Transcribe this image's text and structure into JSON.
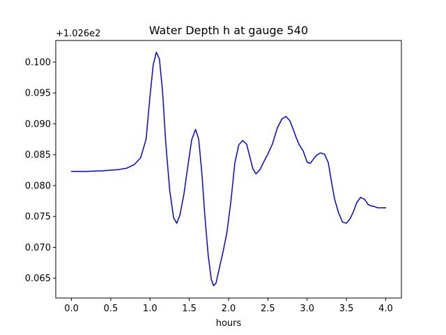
{
  "chart_data": {
    "type": "line",
    "title": "Water Depth h at gauge 540",
    "xlabel": "hours",
    "ylabel": "",
    "y_offset_label": "+1.026e2",
    "xlim": [
      -0.2,
      4.2
    ],
    "ylim": [
      0.0618,
      0.1035
    ],
    "grid": false,
    "x_ticks": [
      {
        "value": 0.0,
        "label": "0.0"
      },
      {
        "value": 0.5,
        "label": "0.5"
      },
      {
        "value": 1.0,
        "label": "1.0"
      },
      {
        "value": 1.5,
        "label": "1.5"
      },
      {
        "value": 2.0,
        "label": "2.0"
      },
      {
        "value": 2.5,
        "label": "2.5"
      },
      {
        "value": 3.0,
        "label": "3.0"
      },
      {
        "value": 3.5,
        "label": "3.5"
      },
      {
        "value": 4.0,
        "label": "4.0"
      }
    ],
    "y_ticks": [
      {
        "value": 0.065,
        "label": "0.065"
      },
      {
        "value": 0.07,
        "label": "0.070"
      },
      {
        "value": 0.075,
        "label": "0.075"
      },
      {
        "value": 0.08,
        "label": "0.080"
      },
      {
        "value": 0.085,
        "label": "0.085"
      },
      {
        "value": 0.09,
        "label": "0.090"
      },
      {
        "value": 0.095,
        "label": "0.095"
      },
      {
        "value": 0.1,
        "label": "0.100"
      }
    ],
    "series": [
      {
        "color": "#0000ff",
        "x": [
          0.0,
          0.2,
          0.4,
          0.6,
          0.7,
          0.8,
          0.88,
          0.95,
          1.0,
          1.04,
          1.08,
          1.12,
          1.16,
          1.2,
          1.25,
          1.3,
          1.34,
          1.38,
          1.43,
          1.48,
          1.53,
          1.58,
          1.62,
          1.66,
          1.7,
          1.74,
          1.78,
          1.81,
          1.84,
          1.88,
          1.93,
          1.98,
          2.03,
          2.08,
          2.13,
          2.18,
          2.23,
          2.27,
          2.31,
          2.35,
          2.4,
          2.45,
          2.5,
          2.56,
          2.62,
          2.68,
          2.73,
          2.78,
          2.82,
          2.86,
          2.9,
          2.95,
          3.0,
          3.04,
          3.08,
          3.12,
          3.17,
          3.22,
          3.27,
          3.31,
          3.35,
          3.4,
          3.45,
          3.5,
          3.55,
          3.59,
          3.63,
          3.68,
          3.73,
          3.78,
          3.82,
          3.86,
          3.9,
          3.95,
          4.0
        ],
        "y": [
          0.0823,
          0.0823,
          0.0824,
          0.0826,
          0.0828,
          0.0834,
          0.0845,
          0.0875,
          0.0945,
          0.0995,
          0.1016,
          0.1005,
          0.0952,
          0.087,
          0.0793,
          0.0748,
          0.0739,
          0.0752,
          0.0785,
          0.083,
          0.0874,
          0.0891,
          0.0875,
          0.082,
          0.0748,
          0.0688,
          0.0648,
          0.0638,
          0.0642,
          0.0665,
          0.0693,
          0.0725,
          0.0775,
          0.0837,
          0.0866,
          0.0873,
          0.0867,
          0.0847,
          0.0827,
          0.0819,
          0.0826,
          0.0839,
          0.0851,
          0.0868,
          0.0893,
          0.0908,
          0.0912,
          0.0905,
          0.0892,
          0.0878,
          0.0866,
          0.0856,
          0.0838,
          0.0836,
          0.0843,
          0.0849,
          0.0853,
          0.0851,
          0.0837,
          0.0806,
          0.0778,
          0.0756,
          0.0741,
          0.0739,
          0.0747,
          0.0758,
          0.0772,
          0.0781,
          0.0778,
          0.0769,
          0.0767,
          0.0766,
          0.0764,
          0.0764,
          0.0764
        ]
      }
    ]
  }
}
